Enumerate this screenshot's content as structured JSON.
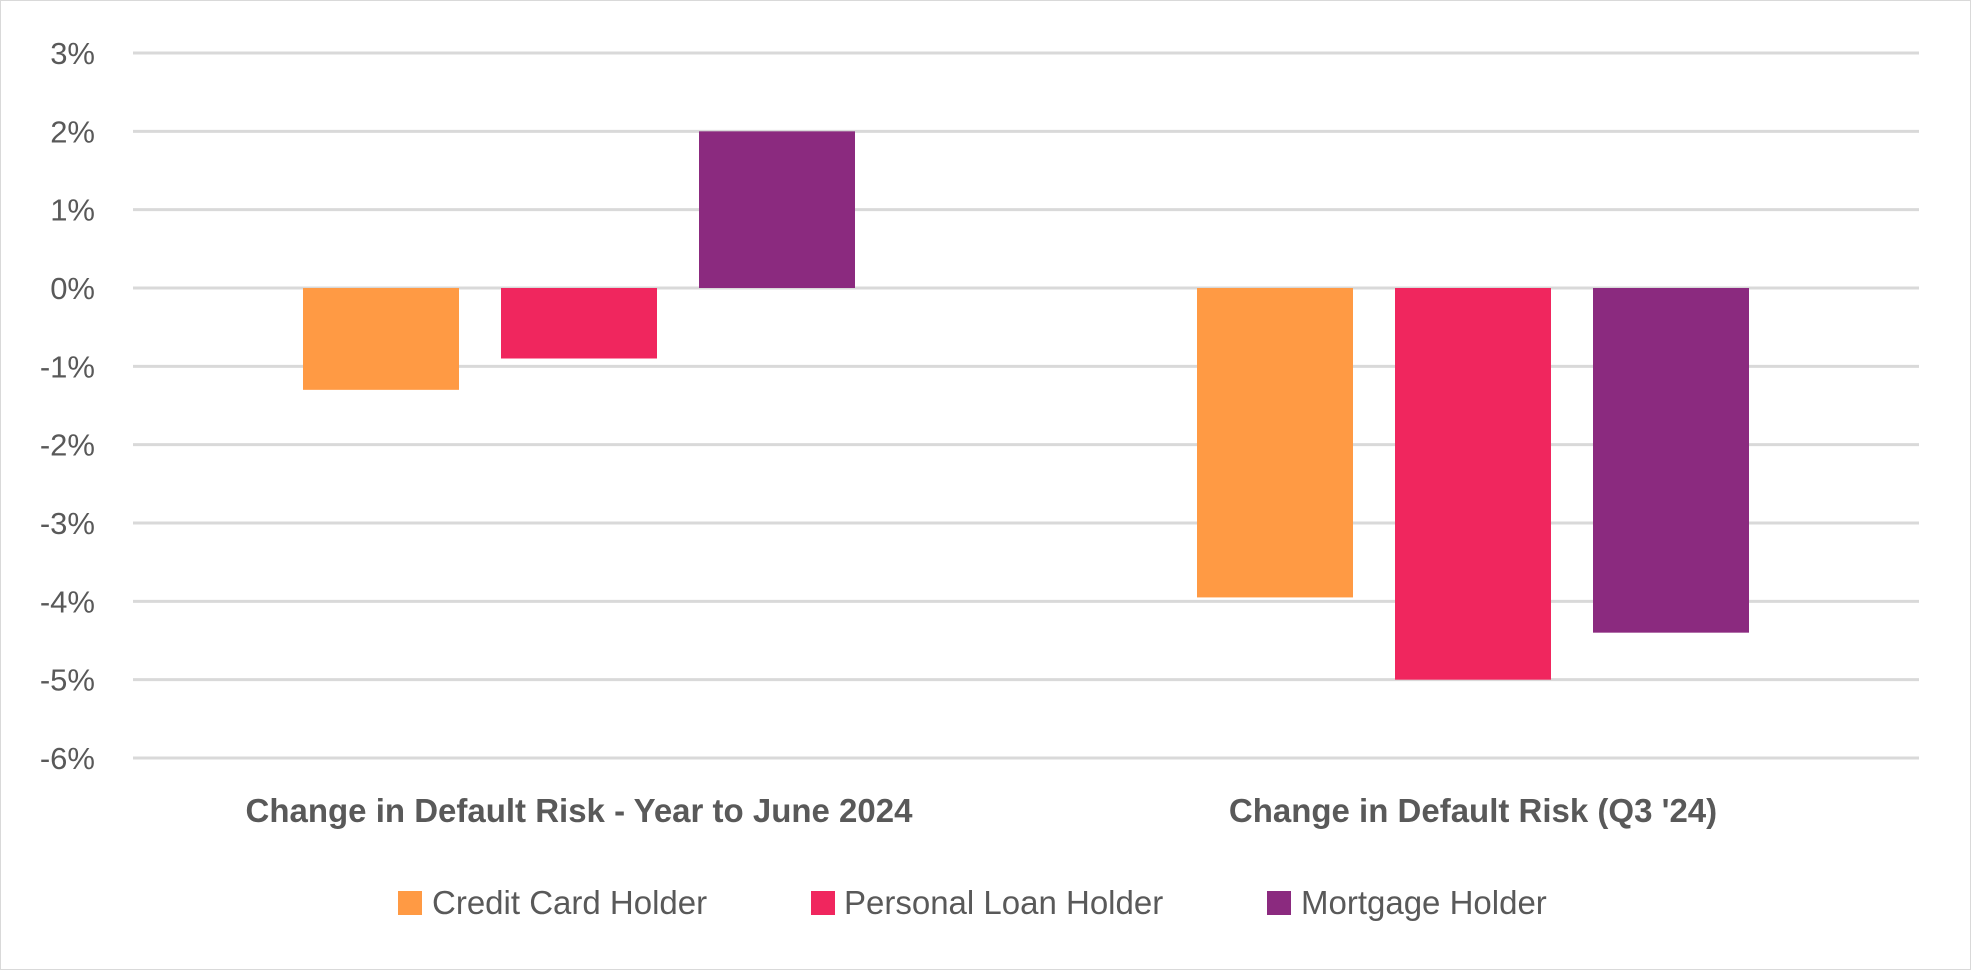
{
  "chart_data": {
    "type": "bar",
    "categories": [
      "Change in Default Risk - Year to June 2024",
      "Change in Default Risk (Q3 '24)"
    ],
    "series": [
      {
        "name": "Credit Card Holder",
        "color": "#FF9A44",
        "values": [
          -1.3,
          -3.95
        ]
      },
      {
        "name": "Personal Loan Holder",
        "color": "#F0265E",
        "values": [
          -0.9,
          -5.0
        ]
      },
      {
        "name": "Mortgage Holder",
        "color": "#8B2A7F",
        "values": [
          2.0,
          -4.4
        ]
      }
    ],
    "y_ticks": [
      "3%",
      "2%",
      "1%",
      "0%",
      "-1%",
      "-2%",
      "-3%",
      "-4%",
      "-5%",
      "-6%"
    ],
    "ylim": [
      -6,
      3
    ],
    "unit": "%",
    "grid": true,
    "legend_position": "bottom"
  }
}
